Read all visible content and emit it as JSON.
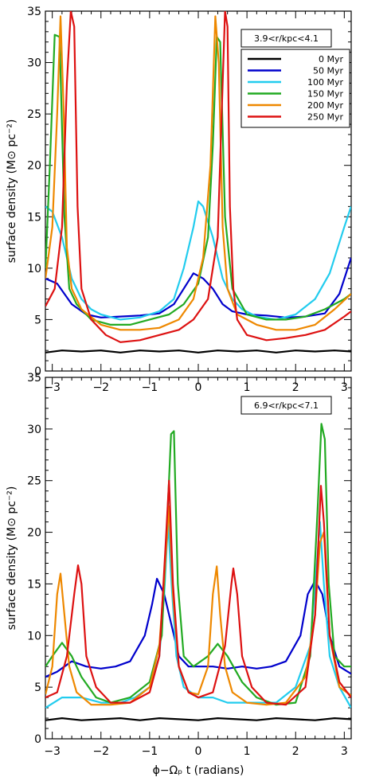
{
  "chart_data": [
    {
      "type": "line",
      "annotation": "3.9<r/kpc<4.1",
      "ylabel": "surface density (M⊙ pc⁻²)",
      "xlabel": "",
      "xlim": [
        -3.14159,
        3.14159
      ],
      "ylim": [
        0,
        35
      ],
      "xticks": [
        -3,
        -2,
        -1,
        0,
        1,
        2,
        3
      ],
      "yticks": [
        0,
        5,
        10,
        15,
        20,
        25,
        30,
        35
      ],
      "legend_position": "top-right",
      "series": [
        {
          "name": "0 Myr",
          "color": "#000000",
          "x": [
            -3.14,
            -2.8,
            -2.4,
            -2.0,
            -1.6,
            -1.2,
            -0.8,
            -0.4,
            0.0,
            0.4,
            0.8,
            1.2,
            1.6,
            2.0,
            2.4,
            2.8,
            3.14
          ],
          "y": [
            1.8,
            2.0,
            1.9,
            2.0,
            1.8,
            2.0,
            1.9,
            2.0,
            1.8,
            2.0,
            1.9,
            2.0,
            1.8,
            2.0,
            1.9,
            2.0,
            1.9
          ]
        },
        {
          "name": "50 Myr",
          "color": "#0000cc",
          "x": [
            -3.14,
            -2.9,
            -2.6,
            -2.3,
            -2.0,
            -1.6,
            -1.2,
            -0.8,
            -0.5,
            -0.3,
            -0.1,
            0.1,
            0.3,
            0.5,
            0.7,
            1.0,
            1.4,
            1.8,
            2.2,
            2.6,
            2.9,
            3.14
          ],
          "y": [
            9.0,
            8.5,
            6.5,
            5.5,
            5.2,
            5.3,
            5.4,
            5.6,
            6.5,
            8.0,
            9.5,
            9.0,
            8.0,
            6.5,
            5.8,
            5.5,
            5.4,
            5.2,
            5.3,
            5.6,
            7.5,
            11.0
          ]
        },
        {
          "name": "100 Myr",
          "color": "#22ccee",
          "x": [
            -3.14,
            -3.0,
            -2.8,
            -2.6,
            -2.4,
            -2.2,
            -2.0,
            -1.6,
            -1.2,
            -0.8,
            -0.5,
            -0.3,
            -0.1,
            0.0,
            0.1,
            0.3,
            0.5,
            0.7,
            0.9,
            1.2,
            1.6,
            2.0,
            2.4,
            2.7,
            3.0,
            3.14
          ],
          "y": [
            16.0,
            15.5,
            13.0,
            9.0,
            7.0,
            6.0,
            5.5,
            5.0,
            5.2,
            5.8,
            7.0,
            10.0,
            14.0,
            16.5,
            16.0,
            13.0,
            9.0,
            7.0,
            6.0,
            5.3,
            5.0,
            5.5,
            7.0,
            9.5,
            14.0,
            16.0
          ]
        },
        {
          "name": "150 Myr",
          "color": "#22aa22",
          "x": [
            -3.14,
            -3.05,
            -2.95,
            -2.85,
            -2.75,
            -2.65,
            -2.5,
            -2.2,
            -1.8,
            -1.4,
            -1.0,
            -0.6,
            -0.3,
            0.0,
            0.2,
            0.3,
            0.38,
            0.45,
            0.55,
            0.7,
            1.0,
            1.4,
            1.8,
            2.2,
            2.6,
            3.0,
            3.14
          ],
          "y": [
            10.0,
            20.0,
            32.7,
            32.5,
            15.0,
            8.0,
            6.5,
            5.0,
            4.5,
            4.5,
            5.0,
            5.5,
            6.5,
            8.5,
            13.0,
            22.0,
            32.5,
            32.0,
            15.0,
            8.0,
            5.5,
            5.0,
            5.0,
            5.3,
            6.0,
            7.0,
            7.5
          ]
        },
        {
          "name": "200 Myr",
          "color": "#ee8800",
          "x": [
            -3.14,
            -3.0,
            -2.9,
            -2.83,
            -2.77,
            -2.7,
            -2.6,
            -2.4,
            -2.0,
            -1.6,
            -1.2,
            -0.8,
            -0.4,
            -0.1,
            0.1,
            0.25,
            0.35,
            0.42,
            0.5,
            0.6,
            0.8,
            1.2,
            1.6,
            2.0,
            2.4,
            2.8,
            3.14
          ],
          "y": [
            9.0,
            14.0,
            25.0,
            34.5,
            26.0,
            12.0,
            8.0,
            6.0,
            4.5,
            4.0,
            4.0,
            4.2,
            5.0,
            7.0,
            11.0,
            20.0,
            34.5,
            30.0,
            14.0,
            8.0,
            5.5,
            4.5,
            4.0,
            4.0,
            4.5,
            6.0,
            7.5
          ]
        },
        {
          "name": "250 Myr",
          "color": "#dd1111",
          "x": [
            -3.14,
            -2.95,
            -2.8,
            -2.7,
            -2.62,
            -2.55,
            -2.48,
            -2.4,
            -2.2,
            -1.9,
            -1.6,
            -1.2,
            -0.8,
            -0.4,
            -0.1,
            0.2,
            0.4,
            0.5,
            0.55,
            0.6,
            0.65,
            0.72,
            0.8,
            1.0,
            1.4,
            1.8,
            2.2,
            2.6,
            3.0,
            3.14
          ],
          "y": [
            6.3,
            8.0,
            14.0,
            28.0,
            35.0,
            33.5,
            16.0,
            8.0,
            5.0,
            3.5,
            2.8,
            3.0,
            3.5,
            4.0,
            5.0,
            7.0,
            13.0,
            28.0,
            35.0,
            33.5,
            16.0,
            8.0,
            5.0,
            3.5,
            3.0,
            3.2,
            3.5,
            4.0,
            5.3,
            5.8
          ]
        }
      ]
    },
    {
      "type": "line",
      "annotation": "6.9<r/kpc<7.1",
      "ylabel": "surface density (M⊙ pc⁻²)",
      "xlabel": "ϕ−Ωₚ t (radians)",
      "xlim": [
        -3.14159,
        3.14159
      ],
      "ylim": [
        0,
        35
      ],
      "xticks": [
        -3,
        -2,
        -1,
        0,
        1,
        2,
        3
      ],
      "yticks": [
        0,
        5,
        10,
        15,
        20,
        25,
        30,
        35
      ],
      "series": [
        {
          "name": "0 Myr",
          "color": "#000000",
          "x": [
            -3.14,
            -2.8,
            -2.4,
            -2.0,
            -1.6,
            -1.2,
            -0.8,
            -0.4,
            0.0,
            0.4,
            0.8,
            1.2,
            1.6,
            2.0,
            2.4,
            2.8,
            3.14
          ],
          "y": [
            1.8,
            2.0,
            1.8,
            1.9,
            2.0,
            1.8,
            2.0,
            1.9,
            1.8,
            2.0,
            1.9,
            1.8,
            2.0,
            1.9,
            1.8,
            2.0,
            1.9
          ]
        },
        {
          "name": "50 Myr",
          "color": "#0000cc",
          "x": [
            -3.14,
            -2.9,
            -2.6,
            -2.3,
            -2.0,
            -1.7,
            -1.4,
            -1.1,
            -0.95,
            -0.85,
            -0.7,
            -0.55,
            -0.4,
            -0.2,
            0.0,
            0.3,
            0.6,
            0.9,
            1.2,
            1.5,
            1.8,
            2.1,
            2.25,
            2.4,
            2.55,
            2.7,
            2.9,
            3.14
          ],
          "y": [
            6.0,
            6.5,
            7.5,
            7.0,
            6.8,
            7.0,
            7.5,
            10.0,
            13.0,
            15.5,
            14.0,
            11.0,
            8.0,
            7.0,
            7.0,
            7.0,
            6.8,
            7.0,
            6.8,
            7.0,
            7.5,
            10.0,
            14.0,
            15.3,
            14.0,
            10.0,
            7.0,
            6.3
          ]
        },
        {
          "name": "100 Myr",
          "color": "#22ccee",
          "x": [
            -3.14,
            -2.8,
            -2.4,
            -2.0,
            -1.6,
            -1.3,
            -1.0,
            -0.8,
            -0.7,
            -0.62,
            -0.55,
            -0.45,
            -0.3,
            0.0,
            0.3,
            0.6,
            0.9,
            1.2,
            1.6,
            2.0,
            2.3,
            2.42,
            2.5,
            2.58,
            2.7,
            2.9,
            3.14
          ],
          "y": [
            3.0,
            4.0,
            4.0,
            3.5,
            3.5,
            4.0,
            5.0,
            8.0,
            14.0,
            21.0,
            15.0,
            8.0,
            5.0,
            4.0,
            4.0,
            3.5,
            3.5,
            3.5,
            3.5,
            5.0,
            9.0,
            16.0,
            21.0,
            15.0,
            8.0,
            5.0,
            3.0
          ]
        },
        {
          "name": "150 Myr",
          "color": "#22aa22",
          "x": [
            -3.14,
            -3.0,
            -2.8,
            -2.6,
            -2.4,
            -2.1,
            -1.8,
            -1.4,
            -1.0,
            -0.75,
            -0.63,
            -0.56,
            -0.5,
            -0.42,
            -0.3,
            -0.1,
            0.2,
            0.4,
            0.6,
            0.9,
            1.2,
            1.6,
            2.0,
            2.3,
            2.45,
            2.53,
            2.6,
            2.68,
            2.8,
            3.0,
            3.14
          ],
          "y": [
            7.0,
            8.0,
            9.3,
            8.0,
            6.0,
            4.0,
            3.5,
            4.0,
            5.5,
            10.0,
            22.0,
            29.5,
            29.8,
            15.0,
            8.0,
            7.0,
            8.0,
            9.2,
            8.0,
            5.5,
            4.0,
            3.3,
            3.5,
            8.0,
            22.0,
            30.5,
            29.0,
            15.0,
            8.0,
            7.0,
            7.0
          ]
        },
        {
          "name": "200 Myr",
          "color": "#ee8800",
          "x": [
            -3.14,
            -3.0,
            -2.9,
            -2.83,
            -2.75,
            -2.65,
            -2.5,
            -2.2,
            -1.8,
            -1.4,
            -1.0,
            -0.8,
            -0.68,
            -0.6,
            -0.52,
            -0.4,
            -0.2,
            0.0,
            0.2,
            0.3,
            0.38,
            0.45,
            0.55,
            0.7,
            1.0,
            1.4,
            1.8,
            2.2,
            2.4,
            2.5,
            2.58,
            2.7,
            2.9,
            3.14
          ],
          "y": [
            4.3,
            7.0,
            14.0,
            16.0,
            12.0,
            7.0,
            4.5,
            3.3,
            3.3,
            3.5,
            5.0,
            9.0,
            17.0,
            22.5,
            14.0,
            7.0,
            4.5,
            4.3,
            7.0,
            14.0,
            16.7,
            12.0,
            7.0,
            4.5,
            3.5,
            3.3,
            3.5,
            6.0,
            12.0,
            19.0,
            20.0,
            10.0,
            5.0,
            4.2
          ]
        },
        {
          "name": "250 Myr",
          "color": "#dd1111",
          "x": [
            -3.14,
            -2.9,
            -2.7,
            -2.55,
            -2.47,
            -2.4,
            -2.3,
            -2.1,
            -1.8,
            -1.4,
            -1.0,
            -0.8,
            -0.68,
            -0.6,
            -0.52,
            -0.4,
            -0.2,
            0.0,
            0.3,
            0.55,
            0.68,
            0.72,
            0.8,
            0.9,
            1.1,
            1.4,
            1.8,
            2.2,
            2.4,
            2.52,
            2.58,
            2.7,
            2.9,
            3.14
          ],
          "y": [
            4.0,
            4.5,
            8.0,
            14.0,
            16.8,
            15.0,
            8.0,
            5.0,
            3.5,
            3.5,
            4.5,
            8.0,
            18.0,
            25.0,
            15.0,
            7.0,
            4.5,
            4.0,
            4.5,
            9.0,
            15.0,
            16.5,
            14.0,
            8.0,
            5.0,
            3.5,
            3.3,
            5.0,
            12.0,
            24.5,
            21.0,
            10.0,
            5.5,
            4.0
          ]
        }
      ]
    }
  ]
}
